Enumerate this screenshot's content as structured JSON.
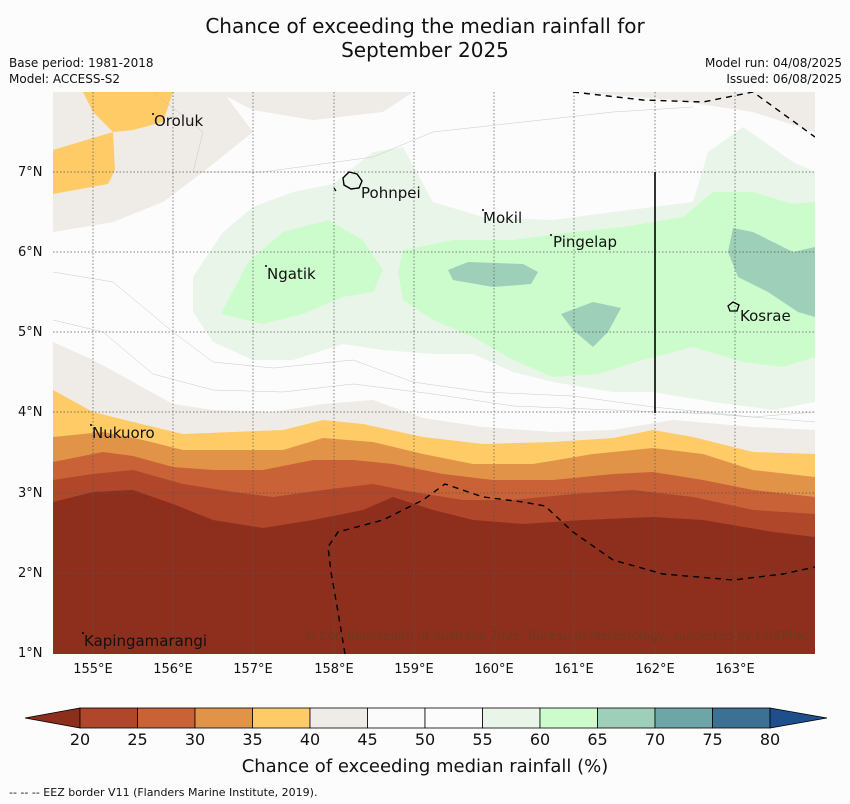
{
  "header": {
    "title_line1": "Chance of exceeding the median rainfall for",
    "title_line2": "September 2025",
    "base_period": "Base period: 1981-2018",
    "model": "Model: ACCESS-S2",
    "model_run": "Model run: 04/08/2025",
    "issued": "Issued: 06/08/2025"
  },
  "map": {
    "lat_labels": [
      "7°N",
      "6°N",
      "5°N",
      "4°N",
      "3°N",
      "2°N",
      "1°N"
    ],
    "lon_labels": [
      "155°E",
      "156°E",
      "157°E",
      "158°E",
      "159°E",
      "160°E",
      "161°E",
      "162°E",
      "163°E"
    ],
    "places": {
      "oroluk": "Oroluk",
      "pohnpei": "Pohnpei",
      "mokil": "Mokil",
      "pingelap": "Pingelap",
      "ngatik": "Ngatik",
      "kosrae": "Kosrae",
      "nukuoro": "Nukuoro",
      "kapingamarangi": "Kapingamarangi"
    },
    "credit": "© Commonwealth of Australia 2025, Bureau of Meteorology, supported by COSPPac"
  },
  "colorbar": {
    "ticks": [
      "20",
      "25",
      "30",
      "35",
      "40",
      "45",
      "50",
      "55",
      "60",
      "65",
      "70",
      "75",
      "80"
    ],
    "colors": {
      "lt20": "#8b2e1c",
      "b20_25": "#b0462a",
      "b25_30": "#c96236",
      "b30_35": "#e19448",
      "b35_40": "#ffcb66",
      "b40_45": "#efebe6",
      "b45_50": "#fafbfa",
      "b50_55": "#fbfcfb",
      "b55_60": "#eaf5e9",
      "b60_65": "#ccfccc",
      "b65_70": "#9dcfb9",
      "b70_75": "#6ea5a7",
      "b75_80": "#3c7194",
      "gt80": "#1e4f8c"
    },
    "label": "Chance of exceeding median rainfall (%)"
  },
  "footer": {
    "eez_note": "--  --  -- EEZ border V11 (Flanders Marine Institute, 2019)."
  }
}
